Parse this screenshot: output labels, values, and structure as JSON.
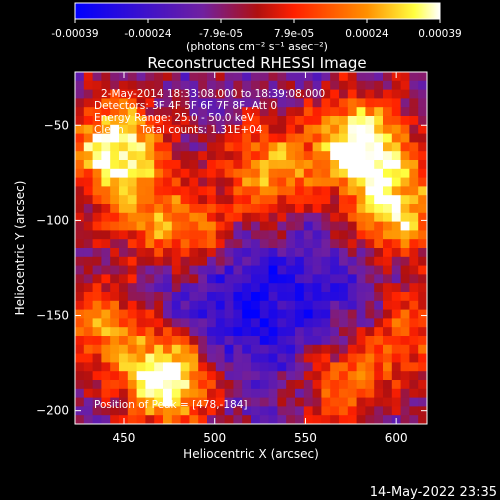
{
  "chart_data": {
    "type": "heatmap",
    "title": "Reconstructed RHESSI Image",
    "xlabel": "Heliocentric X (arcsec)",
    "ylabel": "Heliocentric Y (arcsec)",
    "xlim": [
      423,
      617
    ],
    "ylim": [
      -207,
      -22
    ],
    "x_ticks": [
      450,
      500,
      550,
      600
    ],
    "y_ticks": [
      -50,
      -100,
      -150,
      -200
    ],
    "colorbar": {
      "ticks": [
        "-0.00039",
        "-0.00024",
        "-7.9e-05",
        "7.9e-05",
        "0.00024",
        "0.00039"
      ],
      "unit_label": "(photons cm⁻² s⁻¹ asec⁻²)",
      "colors": [
        "#0000ff",
        "#7020a0",
        "#b01010",
        "#ff2000",
        "#ff9000",
        "#ffff40",
        "#ffffff"
      ]
    },
    "info_lines": [
      "2-May-2014 18:33:08.000 to 18:39:08.000",
      "Detectors: 3F 4F 5F 6F 7F 8F, Att 0",
      "Energy Range: 25.0 - 50.0 keV",
      "Clean     Total counts: 1.31E+04"
    ],
    "peak_label": "Position of Peak = [478,-184]",
    "peak": [
      478,
      -184
    ],
    "hot_regions": [
      {
        "x": 475,
        "y": -183,
        "intensity": 1.0
      },
      {
        "x": 445,
        "y": -60,
        "intensity": 0.85
      },
      {
        "x": 580,
        "y": -60,
        "intensity": 0.9
      },
      {
        "x": 600,
        "y": -95,
        "intensity": 0.75
      },
      {
        "x": 530,
        "y": -75,
        "intensity": 0.65
      },
      {
        "x": 490,
        "y": -110,
        "intensity": 0.55
      },
      {
        "x": 440,
        "y": -155,
        "intensity": 0.55
      },
      {
        "x": 570,
        "y": -185,
        "intensity": 0.6
      },
      {
        "x": 605,
        "y": -160,
        "intensity": 0.5
      },
      {
        "x": 460,
        "y": -95,
        "intensity": 0.45
      }
    ],
    "cold_regions": [
      {
        "x": 500,
        "y": -140,
        "intensity": 0.55
      },
      {
        "x": 560,
        "y": -150,
        "intensity": 0.4
      }
    ]
  },
  "footer": {
    "timestamp": "14-May-2022 23:35"
  }
}
